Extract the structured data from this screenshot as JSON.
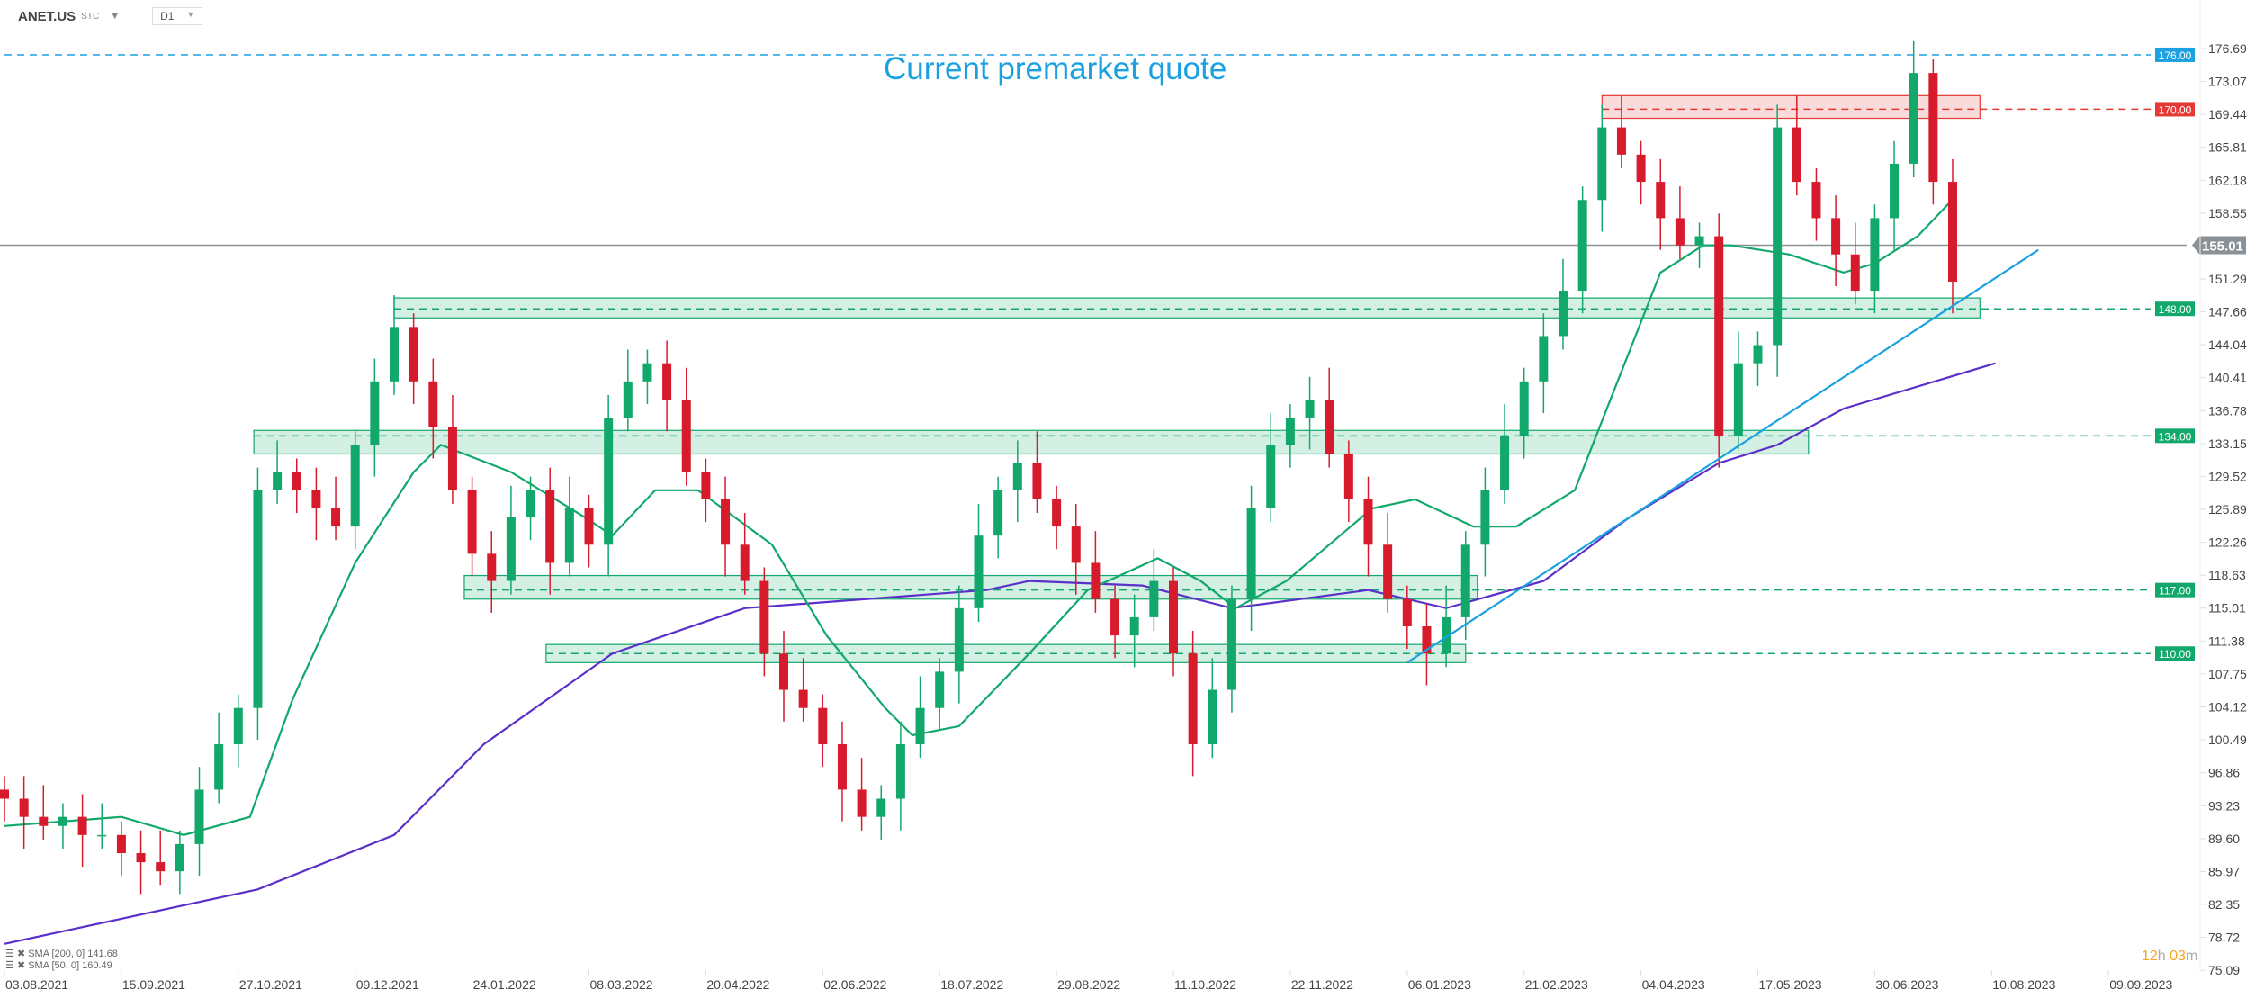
{
  "header": {
    "symbol": "ANET.US",
    "market": "STC",
    "timeframe": "D1"
  },
  "legend": [
    {
      "label": "SMA [200, 0] 141.68",
      "color": "#5b2fc9"
    },
    {
      "label": "SMA [50, 0] 160.49",
      "color": "#13a86b"
    }
  ],
  "timer": {
    "hours": "12",
    "h": "h",
    "minutes": "03",
    "m": "m"
  },
  "annotation_text": "Current premarket quote",
  "chart_data": {
    "type": "candlestick",
    "title": "ANET.US D1",
    "x_unit": "trading-day index",
    "ylim": [
      75.09,
      176.69
    ],
    "y_ticks": [
      176.69,
      173.07,
      169.44,
      165.81,
      162.18,
      158.55,
      155.01,
      151.29,
      147.66,
      144.04,
      140.41,
      136.78,
      133.15,
      129.52,
      125.89,
      122.26,
      118.63,
      115.01,
      111.38,
      107.75,
      104.12,
      100.49,
      96.86,
      93.23,
      89.6,
      85.97,
      82.35,
      78.72,
      75.09
    ],
    "x_ticks": [
      {
        "i": 0,
        "label": "03.08.2021"
      },
      {
        "i": 30,
        "label": "15.09.2021"
      },
      {
        "i": 60,
        "label": "27.10.2021"
      },
      {
        "i": 90,
        "label": "09.12.2021"
      },
      {
        "i": 120,
        "label": "24.01.2022"
      },
      {
        "i": 150,
        "label": "08.03.2022"
      },
      {
        "i": 180,
        "label": "20.04.2022"
      },
      {
        "i": 210,
        "label": "02.06.2022"
      },
      {
        "i": 240,
        "label": "18.07.2022"
      },
      {
        "i": 270,
        "label": "29.08.2022"
      },
      {
        "i": 300,
        "label": "11.10.2022"
      },
      {
        "i": 330,
        "label": "22.11.2022"
      },
      {
        "i": 360,
        "label": "06.01.2023"
      },
      {
        "i": 390,
        "label": "21.02.2023"
      },
      {
        "i": 420,
        "label": "04.04.2023"
      },
      {
        "i": 450,
        "label": "17.05.2023"
      },
      {
        "i": 480,
        "label": "30.06.2023"
      },
      {
        "i": 510,
        "label": "10.08.2023"
      },
      {
        "i": 540,
        "label": "09.09.2023"
      }
    ],
    "bar_step": 5,
    "closes": [
      94,
      92,
      91,
      92,
      90,
      90,
      88,
      87,
      86,
      89,
      95,
      100,
      104,
      128,
      130,
      128,
      126,
      124,
      133,
      140,
      146,
      140,
      135,
      128,
      121,
      118,
      125,
      128,
      120,
      126,
      122,
      136,
      140,
      142,
      138,
      130,
      127,
      122,
      118,
      110,
      106,
      104,
      100,
      95,
      92,
      94,
      100,
      104,
      108,
      115,
      123,
      128,
      131,
      127,
      124,
      120,
      116,
      112,
      114,
      118,
      110,
      100,
      106,
      116,
      126,
      133,
      136,
      138,
      132,
      127,
      122,
      116,
      113,
      110,
      114,
      122,
      128,
      134,
      140,
      145,
      150,
      160,
      168,
      165,
      162,
      158,
      155,
      156,
      134,
      142,
      144,
      168,
      162,
      158,
      154,
      150,
      158,
      164,
      174,
      162,
      151
    ],
    "sma200": [
      [
        0,
        78
      ],
      [
        65,
        84
      ],
      [
        100,
        90
      ],
      [
        123,
        100
      ],
      [
        156,
        110
      ],
      [
        190,
        115
      ],
      [
        252,
        117
      ],
      [
        263,
        118
      ],
      [
        292,
        117.5
      ],
      [
        315,
        115
      ],
      [
        350,
        117
      ],
      [
        370,
        115
      ],
      [
        395,
        118
      ],
      [
        417,
        125
      ],
      [
        440,
        131
      ],
      [
        455,
        133
      ],
      [
        472,
        137
      ],
      [
        511,
        142
      ]
    ],
    "sma50": [
      [
        0,
        91
      ],
      [
        30,
        92
      ],
      [
        46,
        90
      ],
      [
        63,
        92
      ],
      [
        74,
        105
      ],
      [
        90,
        120
      ],
      [
        105,
        130
      ],
      [
        112,
        133
      ],
      [
        130,
        130
      ],
      [
        149,
        125
      ],
      [
        156,
        123
      ],
      [
        167,
        128
      ],
      [
        178,
        128
      ],
      [
        197,
        122
      ],
      [
        211,
        112
      ],
      [
        226,
        104
      ],
      [
        233,
        101
      ],
      [
        245,
        102
      ],
      [
        263,
        110
      ],
      [
        278,
        117
      ],
      [
        296,
        120.5
      ],
      [
        307,
        118
      ],
      [
        316,
        115
      ],
      [
        329,
        118
      ],
      [
        340,
        122
      ],
      [
        351,
        126
      ],
      [
        362,
        127
      ],
      [
        377,
        124
      ],
      [
        388,
        124
      ],
      [
        403,
        128
      ],
      [
        414,
        140
      ],
      [
        425,
        152
      ],
      [
        436,
        155
      ],
      [
        443,
        155
      ],
      [
        458,
        154
      ],
      [
        472,
        152
      ],
      [
        480,
        153
      ],
      [
        491,
        156
      ],
      [
        501,
        160.5
      ]
    ],
    "last_price": 155.01,
    "levels": [
      {
        "price": 176.0,
        "label": "176.00",
        "color": "#1ba1e2",
        "from": 0,
        "zone": null
      },
      {
        "price": 170.0,
        "label": "170.00",
        "color": "#e53935",
        "from": 410,
        "zone": [
          169,
          171.5
        ]
      },
      {
        "price": 148.0,
        "label": "148.00",
        "color": "#13a86b",
        "from": 100,
        "zone": [
          147,
          149.2
        ]
      },
      {
        "price": 134.0,
        "label": "134.00",
        "color": "#13a86b",
        "from": 64,
        "zone": [
          132,
          134.6
        ]
      },
      {
        "price": 117.0,
        "label": "117.00",
        "color": "#13a86b",
        "from": 118,
        "zone": [
          116,
          118.6
        ]
      },
      {
        "price": 110.0,
        "label": "110.00",
        "color": "#13a86b",
        "from": 139,
        "zone": [
          109,
          111
        ]
      }
    ],
    "zone_ends": {
      "170.00": 507,
      "148.00": 507,
      "134.00": 463,
      "117.00": 378,
      "110.00": 375
    },
    "trendline": [
      [
        360,
        109
      ],
      [
        522,
        154.5
      ]
    ]
  }
}
